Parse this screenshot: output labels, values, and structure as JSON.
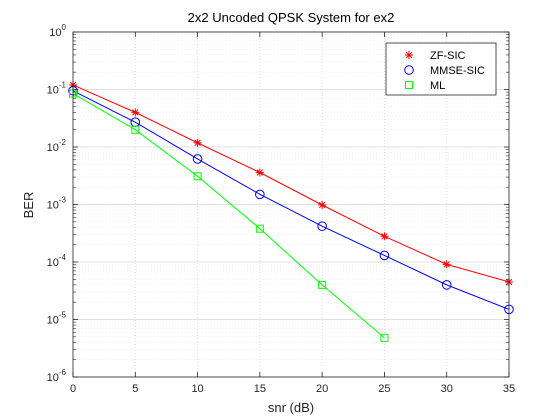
{
  "chart_data": {
    "type": "line",
    "title": "2x2 Uncoded QPSK System for ex2",
    "xlabel": "snr (dB)",
    "ylabel": "BER",
    "xlim": [
      0,
      35
    ],
    "ylim": [
      1e-06,
      1
    ],
    "yscale": "log",
    "grid": true,
    "legend_position": "top-right",
    "x_ticks": [
      "0",
      "5",
      "10",
      "15",
      "20",
      "25",
      "30",
      "35"
    ],
    "y_tick_exponents": [
      "0",
      "-1",
      "-2",
      "-3",
      "-4",
      "-5",
      "-6"
    ],
    "y_tick_base": "10",
    "series": [
      {
        "name": "ZF-SIC",
        "color": "#ff0000",
        "marker": "asterisk",
        "x": [
          0,
          5,
          10,
          15,
          20,
          25,
          30,
          35
        ],
        "y": [
          0.12,
          0.04,
          0.0118,
          0.0036,
          0.00098,
          0.00028,
          9.1e-05,
          4.5e-05
        ]
      },
      {
        "name": "MMSE-SIC",
        "color": "#0000ff",
        "marker": "circle",
        "x": [
          0,
          5,
          10,
          15,
          20,
          25,
          30,
          35
        ],
        "y": [
          0.095,
          0.027,
          0.0062,
          0.0015,
          0.00042,
          0.00013,
          4e-05,
          1.5e-05
        ]
      },
      {
        "name": "ML",
        "color": "#00ff00",
        "marker": "square",
        "x": [
          0,
          5,
          10,
          15,
          20,
          25
        ],
        "y": [
          0.085,
          0.02,
          0.0031,
          0.00038,
          4e-05,
          4.8e-06
        ]
      }
    ]
  }
}
